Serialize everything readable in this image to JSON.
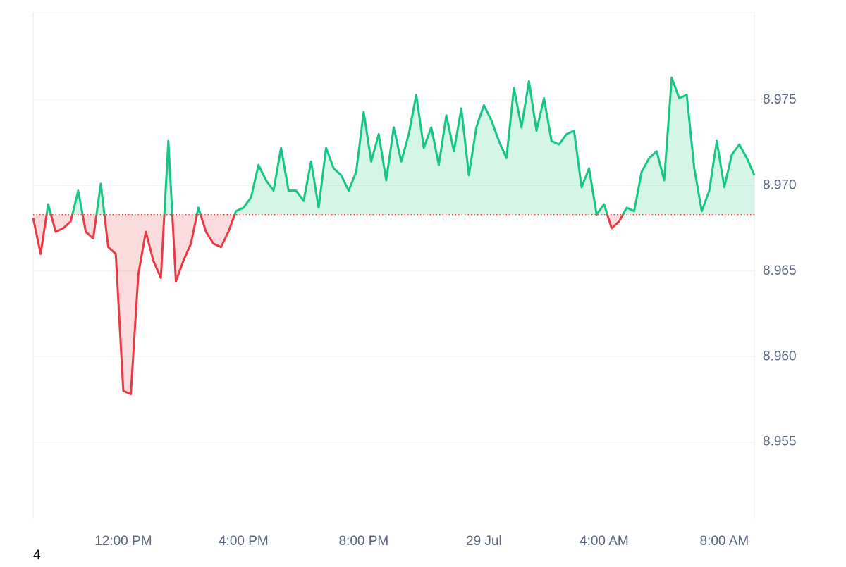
{
  "chart_data": {
    "type": "line",
    "categories": [
      null,
      null,
      null,
      null,
      null,
      null,
      null,
      null,
      null,
      null,
      null,
      null,
      "12:00 PM",
      null,
      null,
      null,
      null,
      null,
      null,
      null,
      null,
      null,
      null,
      null,
      null,
      null,
      null,
      null,
      "4:00 PM",
      null,
      null,
      null,
      null,
      null,
      null,
      null,
      null,
      null,
      null,
      null,
      null,
      null,
      null,
      null,
      "8:00 PM",
      null,
      null,
      null,
      null,
      null,
      null,
      null,
      null,
      null,
      null,
      null,
      null,
      null,
      null,
      null,
      "29 Jul",
      null,
      null,
      null,
      null,
      null,
      null,
      null,
      null,
      null,
      null,
      null,
      null,
      null,
      null,
      null,
      "4:00 AM",
      null,
      null,
      null,
      null,
      null,
      null,
      null,
      null,
      null,
      null,
      null,
      null,
      null,
      null,
      null,
      "8:00 AM",
      null,
      null,
      null,
      null
    ],
    "values": [
      8.9681,
      8.966,
      8.9689,
      8.9673,
      8.9675,
      8.9679,
      8.9697,
      8.9673,
      8.9669,
      8.9701,
      8.9664,
      8.966,
      8.958,
      8.9578,
      8.9648,
      8.9673,
      8.9656,
      8.9646,
      8.9726,
      8.9644,
      8.9656,
      8.9666,
      8.9687,
      8.9673,
      8.9666,
      8.9664,
      8.9673,
      8.9685,
      8.9687,
      8.9693,
      8.9712,
      8.9703,
      8.9697,
      8.9722,
      8.9697,
      8.9697,
      8.9691,
      8.9714,
      8.9687,
      8.9722,
      8.971,
      8.9706,
      8.9697,
      8.9708,
      8.9743,
      8.9714,
      8.973,
      8.9703,
      8.9734,
      8.9714,
      8.973,
      8.9753,
      8.9722,
      8.9734,
      8.9712,
      8.9741,
      8.972,
      8.9745,
      8.9706,
      8.9734,
      8.9747,
      8.9738,
      8.9726,
      8.9716,
      8.9757,
      8.9734,
      8.9761,
      8.9732,
      8.9751,
      8.9726,
      8.9724,
      8.973,
      8.9732,
      8.9699,
      8.971,
      8.9683,
      8.9689,
      8.9675,
      8.9679,
      8.9687,
      8.9685,
      8.9708,
      8.9716,
      8.972,
      8.9703,
      8.9763,
      8.9751,
      8.9753,
      8.971,
      8.9685,
      8.9697,
      8.9726,
      8.9699,
      8.9718,
      8.9724,
      8.9716,
      8.9706
    ],
    "baseline": 8.9683,
    "up_color": "#16c784",
    "down_color": "#ea3943",
    "ylim": [
      8.9505,
      8.9801
    ],
    "yticks": [
      8.955,
      {
        "value": 8.96,
        "label": "8.960"
      },
      8.965,
      {
        "value": 8.97,
        "label": "8.970"
      },
      8.975
    ],
    "grid": true,
    "footnote": "4"
  }
}
